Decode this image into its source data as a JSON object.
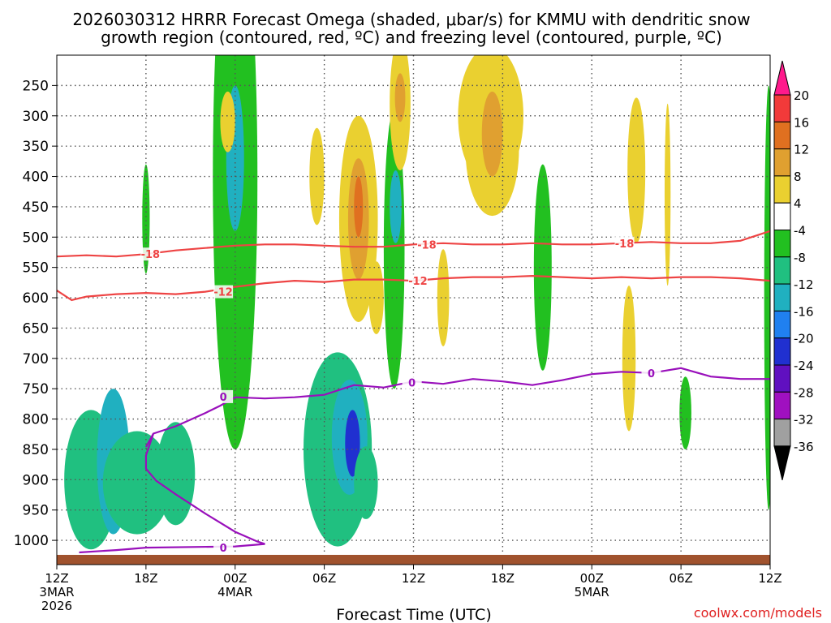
{
  "chart_data": {
    "type": "heatmap",
    "title_line1": "2026030312 HRRR Forecast Omega (shaded, μbar/s) for KMMU with dendritic snow",
    "title_line2": "growth region (contoured, red, ºC) and freezing level (contoured, purple, ºC)",
    "xlabel": "Forecast Time (UTC)",
    "watermark": "coolwx.com/models",
    "x_range_hours": [
      0,
      48
    ],
    "x_ticks": [
      {
        "hour": 0,
        "label": "12Z",
        "sub1": "3MAR",
        "sub2": "2026"
      },
      {
        "hour": 6,
        "label": "18Z",
        "sub1": "",
        "sub2": ""
      },
      {
        "hour": 12,
        "label": "00Z",
        "sub1": "4MAR",
        "sub2": ""
      },
      {
        "hour": 18,
        "label": "06Z",
        "sub1": "",
        "sub2": ""
      },
      {
        "hour": 24,
        "label": "12Z",
        "sub1": "",
        "sub2": ""
      },
      {
        "hour": 30,
        "label": "18Z",
        "sub1": "",
        "sub2": ""
      },
      {
        "hour": 36,
        "label": "00Z",
        "sub1": "5MAR",
        "sub2": ""
      },
      {
        "hour": 42,
        "label": "06Z",
        "sub1": "",
        "sub2": ""
      },
      {
        "hour": 48,
        "label": "12Z",
        "sub1": "",
        "sub2": ""
      }
    ],
    "y_range_hPa": [
      200,
      1040
    ],
    "y_ticks": [
      250,
      300,
      350,
      400,
      450,
      500,
      550,
      600,
      650,
      700,
      750,
      800,
      850,
      900,
      950,
      1000
    ],
    "colorbar": {
      "labels": [
        "20",
        "16",
        "12",
        "8",
        "4",
        "-4",
        "-8",
        "-12",
        "-16",
        "-20",
        "-24",
        "-28",
        "-32",
        "-36"
      ],
      "bins": [
        "#ff1a8c",
        "#f23a3a",
        "#e07020",
        "#e0a030",
        "#ead030",
        "#ffffff",
        "#22c020",
        "#20c080",
        "#20b0c0",
        "#2080f0",
        "#2030d0",
        "#6010c0",
        "#a010c0",
        "#a0a0a0",
        "#000000"
      ]
    },
    "contour_labels": {
      "dgz_warm": "-12",
      "dgz_cold": "-18",
      "freezing": "0"
    },
    "colors": {
      "dgz": "#ee4444",
      "freezing": "#9910bb",
      "ground": "#a0522d",
      "grid": "#555555"
    },
    "dgz_cold_line": [
      [
        0,
        532
      ],
      [
        2,
        530
      ],
      [
        4,
        532
      ],
      [
        6,
        528
      ],
      [
        8,
        522
      ],
      [
        10,
        518
      ],
      [
        12,
        514
      ],
      [
        14,
        512
      ],
      [
        16,
        512
      ],
      [
        18,
        514
      ],
      [
        20,
        516
      ],
      [
        22,
        516
      ],
      [
        24,
        512
      ],
      [
        26,
        510
      ],
      [
        28,
        512
      ],
      [
        30,
        512
      ],
      [
        32,
        510
      ],
      [
        34,
        512
      ],
      [
        36,
        512
      ],
      [
        38,
        510
      ],
      [
        40,
        508
      ],
      [
        42,
        510
      ],
      [
        44,
        510
      ],
      [
        46,
        506
      ],
      [
        48,
        490
      ]
    ],
    "dgz_warm_line": [
      [
        0,
        588
      ],
      [
        1,
        604
      ],
      [
        2,
        598
      ],
      [
        4,
        594
      ],
      [
        6,
        592
      ],
      [
        8,
        594
      ],
      [
        10,
        590
      ],
      [
        12,
        582
      ],
      [
        14,
        576
      ],
      [
        16,
        572
      ],
      [
        18,
        574
      ],
      [
        20,
        570
      ],
      [
        22,
        570
      ],
      [
        24,
        572
      ],
      [
        26,
        568
      ],
      [
        28,
        566
      ],
      [
        30,
        566
      ],
      [
        32,
        564
      ],
      [
        34,
        566
      ],
      [
        36,
        568
      ],
      [
        38,
        566
      ],
      [
        40,
        568
      ],
      [
        42,
        566
      ],
      [
        44,
        566
      ],
      [
        46,
        568
      ],
      [
        48,
        572
      ]
    ],
    "freezing_main_line": [
      [
        6,
        846
      ],
      [
        6.5,
        824
      ],
      [
        8,
        812
      ],
      [
        10,
        790
      ],
      [
        11,
        778
      ],
      [
        12,
        764
      ],
      [
        14,
        766
      ],
      [
        16,
        764
      ],
      [
        18,
        760
      ],
      [
        20,
        744
      ],
      [
        22,
        748
      ],
      [
        24,
        738
      ],
      [
        26,
        742
      ],
      [
        28,
        734
      ],
      [
        30,
        738
      ],
      [
        32,
        744
      ],
      [
        34,
        736
      ],
      [
        36,
        726
      ],
      [
        38,
        722
      ],
      [
        40,
        724
      ],
      [
        42,
        716
      ],
      [
        44,
        730
      ],
      [
        46,
        734
      ],
      [
        48,
        734
      ]
    ],
    "freezing_loop_line": [
      [
        6.5,
        824
      ],
      [
        6,
        860
      ],
      [
        6,
        882
      ],
      [
        6.7,
        902
      ],
      [
        8,
        924
      ],
      [
        10,
        956
      ],
      [
        12,
        986
      ],
      [
        13.5,
        1002
      ],
      [
        14,
        1006
      ],
      [
        12,
        1010
      ],
      [
        6,
        1012
      ],
      [
        4,
        1016
      ],
      [
        1.5,
        1020
      ]
    ],
    "omega_cells": [
      {
        "hour": 2.3,
        "p": 900,
        "hw": 1.8,
        "hh": 115,
        "val": -9
      },
      {
        "hour": 3.8,
        "p": 870,
        "hw": 1.1,
        "hh": 120,
        "val": -12
      },
      {
        "hour": 5.4,
        "p": 905,
        "hw": 2.3,
        "hh": 85,
        "val": -11
      },
      {
        "hour": 8.0,
        "p": 890,
        "hw": 1.3,
        "hh": 85,
        "val": -10
      },
      {
        "hour": 6.0,
        "p": 470,
        "hw": 0.25,
        "hh": 90,
        "val": -7
      },
      {
        "hour": 12.0,
        "p": 400,
        "hw": 1.5,
        "hh": 450,
        "val": -6
      },
      {
        "hour": 12.0,
        "p": 370,
        "hw": 0.6,
        "hh": 120,
        "val": -12
      },
      {
        "hour": 18.9,
        "p": 850,
        "hw": 2.3,
        "hh": 160,
        "val": -9
      },
      {
        "hour": 19.7,
        "p": 830,
        "hw": 1.2,
        "hh": 95,
        "val": -14
      },
      {
        "hour": 19.9,
        "p": 840,
        "hw": 0.5,
        "hh": 55,
        "val": -22
      },
      {
        "hour": 20.8,
        "p": 905,
        "hw": 0.8,
        "hh": 60,
        "val": -10
      },
      {
        "hour": 22.7,
        "p": 520,
        "hw": 0.7,
        "hh": 230,
        "val": -6
      },
      {
        "hour": 22.8,
        "p": 450,
        "hw": 0.4,
        "hh": 60,
        "val": -12
      },
      {
        "hour": 32.7,
        "p": 550,
        "hw": 0.6,
        "hh": 170,
        "val": -7
      },
      {
        "hour": 42.3,
        "p": 790,
        "hw": 0.4,
        "hh": 60,
        "val": -5
      },
      {
        "hour": 47.9,
        "p": 600,
        "hw": 0.3,
        "hh": 350,
        "val": -6
      },
      {
        "hour": 20.3,
        "p": 470,
        "hw": 1.3,
        "hh": 170,
        "val": 5
      },
      {
        "hour": 20.3,
        "p": 470,
        "hw": 0.7,
        "hh": 100,
        "val": 9
      },
      {
        "hour": 20.3,
        "p": 450,
        "hw": 0.3,
        "hh": 50,
        "val": 13
      },
      {
        "hour": 21.5,
        "p": 600,
        "hw": 0.5,
        "hh": 60,
        "val": 5
      },
      {
        "hour": 23.1,
        "p": 280,
        "hw": 0.7,
        "hh": 110,
        "val": 6
      },
      {
        "hour": 23.1,
        "p": 270,
        "hw": 0.35,
        "hh": 40,
        "val": 11
      },
      {
        "hour": 29.2,
        "p": 300,
        "hw": 2.2,
        "hh": 115,
        "val": 5
      },
      {
        "hour": 29.3,
        "p": 355,
        "hw": 1.8,
        "hh": 110,
        "val": 4
      },
      {
        "hour": 29.3,
        "p": 330,
        "hw": 0.7,
        "hh": 70,
        "val": 9
      },
      {
        "hour": 39.0,
        "p": 390,
        "hw": 0.6,
        "hh": 120,
        "val": 5
      },
      {
        "hour": 38.5,
        "p": 700,
        "hw": 0.45,
        "hh": 120,
        "val": 4
      },
      {
        "hour": 41.1,
        "p": 430,
        "hw": 0.2,
        "hh": 150,
        "val": 5
      },
      {
        "hour": 26.0,
        "p": 600,
        "hw": 0.4,
        "hh": 80,
        "val": 4
      },
      {
        "hour": 17.5,
        "p": 400,
        "hw": 0.5,
        "hh": 80,
        "val": 4
      },
      {
        "hour": 11.5,
        "p": 310,
        "hw": 0.5,
        "hh": 50,
        "val": 4
      }
    ]
  }
}
